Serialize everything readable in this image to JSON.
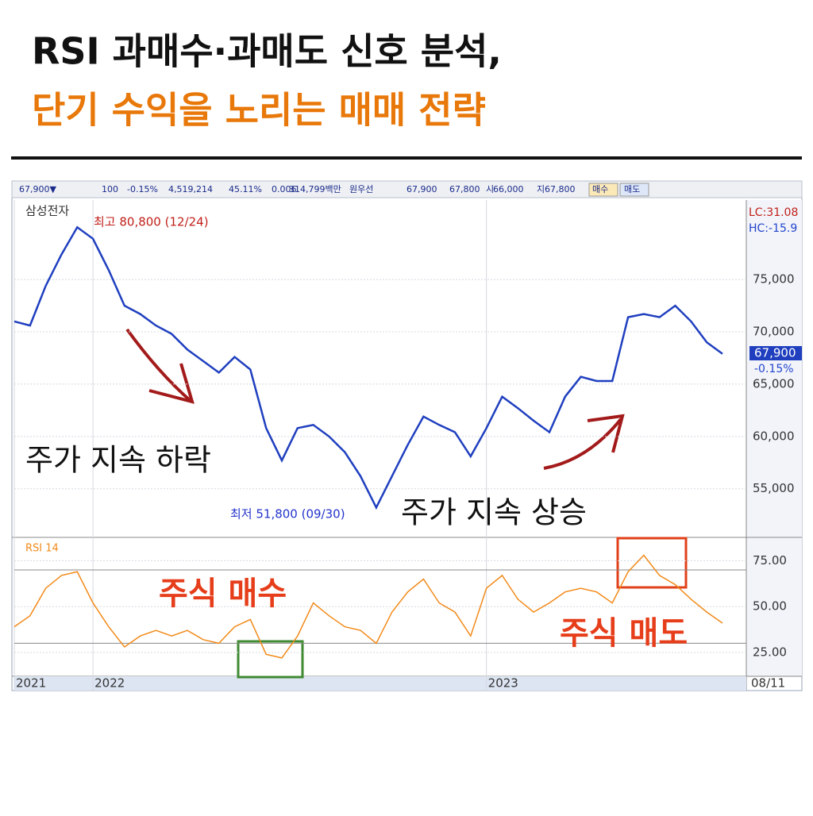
{
  "header": {
    "title": "RSI 과매수·과매도 신호 분석,",
    "subtitle": "단기 수익을 노리는 매매 전략"
  },
  "toolbar": [
    "67,900▼",
    "100",
    "-0.15%",
    "4,519,214",
    "45.11%",
    "0.006",
    "314,799백만",
    "원우선",
    "67,900",
    "67,800",
    "시",
    "66,000",
    "지",
    "67,800",
    "매수",
    "매도"
  ],
  "chart_data": [
    {
      "type": "line",
      "title": "삼성전자",
      "color": "#1f3fbf",
      "categories": [
        "2021",
        null,
        null,
        null,
        null,
        "2022",
        null,
        null,
        null,
        null,
        null,
        null,
        null,
        null,
        null,
        null,
        null,
        null,
        null,
        null,
        null,
        null,
        null,
        null,
        null,
        null,
        null,
        null,
        null,
        null,
        "2023",
        null,
        null,
        null,
        null,
        null,
        null,
        null,
        null,
        null,
        null,
        null,
        null,
        null,
        null,
        null
      ],
      "values": [
        71000,
        70600,
        74400,
        77400,
        80000,
        78900,
        75900,
        72500,
        71700,
        70600,
        69800,
        68300,
        67200,
        66100,
        67600,
        66400,
        60800,
        57700,
        60800,
        61100,
        60000,
        58500,
        56200,
        53200,
        56200,
        59200,
        61900,
        61100,
        60400,
        58100,
        60800,
        63800,
        62700,
        61500,
        60400,
        63800,
        65700,
        65300,
        65300,
        71400,
        71700,
        71400,
        72500,
        71000,
        69000,
        67900
      ],
      "ylim": [
        50500,
        82600
      ],
      "yticks": [
        {
          "value": 55000,
          "label": "55,000"
        },
        {
          "value": 60000,
          "label": "60,000"
        },
        {
          "value": 65000,
          "label": "65,000"
        },
        {
          "value": 70000,
          "label": "70,000"
        },
        {
          "value": 75000,
          "label": "75,000"
        }
      ],
      "grid": true,
      "annotations": {
        "high": "최고 80,800 (12/24)",
        "low": "최저 51,800 (09/30)",
        "lc": "LC:31.08",
        "hc": "HC:-15.9",
        "last_price": "67,900",
        "last_change": "-0.15%",
        "trend_down": "주가 지속 하락",
        "trend_up": "주가 지속 상승"
      }
    },
    {
      "type": "line",
      "title": "RSI 14",
      "color": "#f28a1a",
      "values": [
        39,
        45,
        60,
        67,
        69,
        52,
        39,
        28,
        34,
        37,
        34,
        37,
        32,
        30,
        39,
        43,
        24,
        22,
        34,
        52,
        45,
        39,
        37,
        30,
        47,
        58,
        65,
        52,
        47,
        34,
        60,
        67,
        54,
        47,
        52,
        58,
        60,
        58,
        52,
        69,
        78,
        67,
        62,
        54,
        47,
        41
      ],
      "ylim": [
        12,
        86
      ],
      "yticks": [
        {
          "value": 25,
          "label": "25.00"
        },
        {
          "value": 50,
          "label": "50.00"
        },
        {
          "value": 75,
          "label": "75.00"
        }
      ],
      "reference_lines": [
        30,
        70
      ],
      "end_date": "08/11",
      "annotations": {
        "buy": "주식 매수",
        "sell": "주식 매도"
      }
    }
  ]
}
